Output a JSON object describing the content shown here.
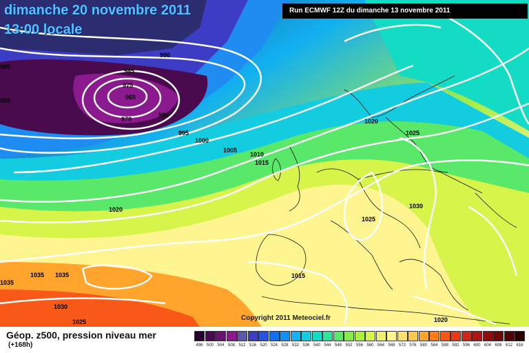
{
  "header": {
    "date_line": "dimanche 20 novembre 2011",
    "time_line": "13:00 locale",
    "run_info": "Run ECMWF 12Z du dimanche 13 novembre 2011"
  },
  "footer": {
    "field_label": "Géop. z500, pression niveau mer",
    "lead_time": "(+168h)",
    "copyright": "Copyright 2011 Meteociel.fr"
  },
  "pressure_labels": [
    "985",
    "985",
    "990",
    "985",
    "975",
    "965",
    "970",
    "980",
    "995",
    "1000",
    "1005",
    "1010",
    "1015",
    "1020",
    "1025",
    "1020",
    "1025",
    "1030",
    "1020",
    "1035",
    "1035",
    "1030",
    "1025",
    "1015",
    "1020"
  ],
  "scale": {
    "values": [
      "496",
      "500",
      "504",
      "508",
      "512",
      "516",
      "520",
      "524",
      "528",
      "532",
      "536",
      "540",
      "544",
      "548",
      "552",
      "556",
      "560",
      "564",
      "568",
      "572",
      "576",
      "580",
      "584",
      "588",
      "592",
      "596",
      "600",
      "604",
      "608",
      "612",
      "616"
    ],
    "colors": [
      "#2b0030",
      "#4a0a4e",
      "#6a1270",
      "#8a1a8e",
      "#5a5aaa",
      "#3c3cc4",
      "#2a50e0",
      "#1070f0",
      "#1090f8",
      "#12b2f4",
      "#14cce0",
      "#14dcc4",
      "#2ce49a",
      "#5ae86a",
      "#86ec48",
      "#aef040",
      "#d6f44a",
      "#eef070",
      "#fff590",
      "#ffe070",
      "#ffc84a",
      "#ffa42c",
      "#ff7c18",
      "#f85818",
      "#e83a18",
      "#d02818",
      "#b01414",
      "#900c0c",
      "#700808",
      "#500404",
      "#2a0000"
    ]
  }
}
